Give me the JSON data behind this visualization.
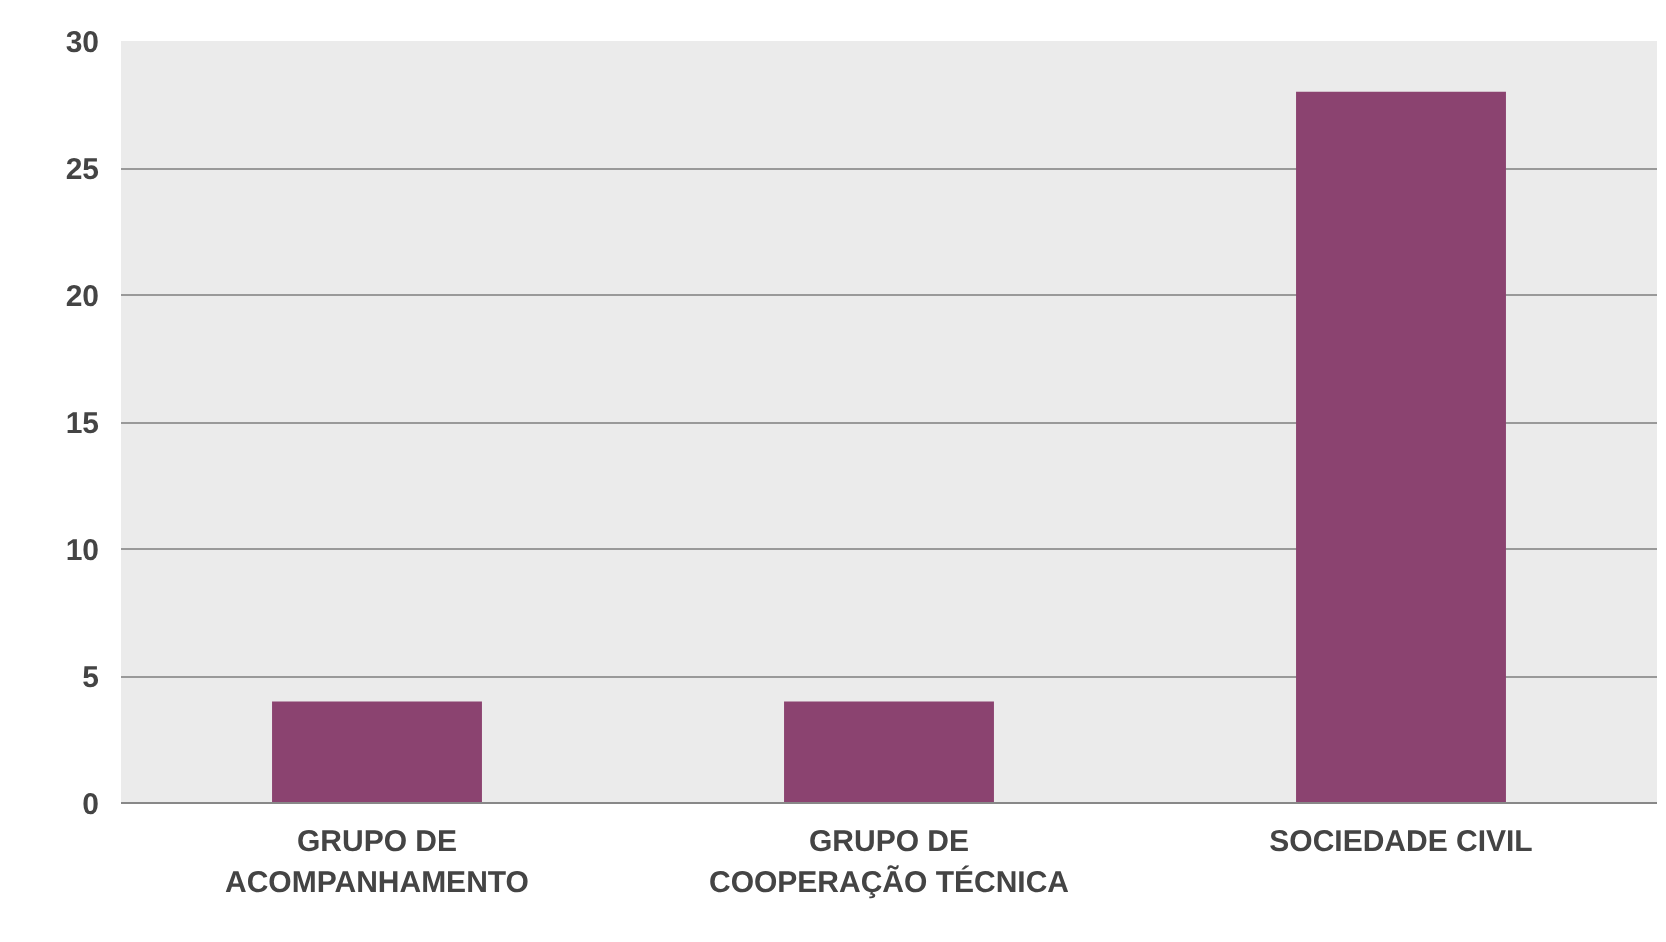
{
  "chart_data": {
    "type": "bar",
    "categories": [
      "GRUPO DE\nACOMPANHAMENTO",
      "GRUPO DE\nCOOPERAÇÃO TÉCNICA",
      "SOCIEDADE CIVIL"
    ],
    "values": [
      4,
      4,
      28
    ],
    "color": "#8b4370",
    "ylim": [
      0,
      30
    ],
    "yticks": [
      0,
      5,
      10,
      15,
      20,
      25,
      30
    ],
    "grid": "y"
  }
}
